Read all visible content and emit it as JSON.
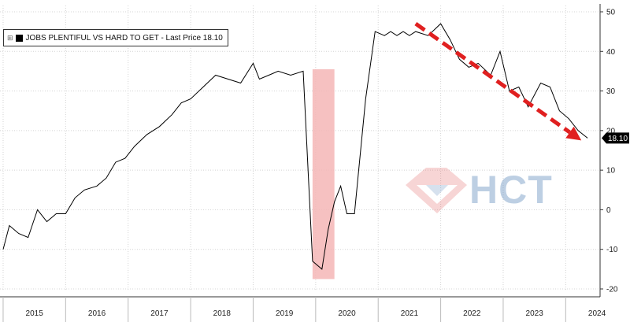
{
  "legend": {
    "label": "JOBS PLENTIFUL VS HARD TO GET - Last Price 18.10",
    "icon": "expand-plus-icon"
  },
  "watermark": {
    "text": "HCT",
    "logo": "diamond-logo-icon"
  },
  "colors": {
    "series": "#000000",
    "recession_band": "#f4b6b6",
    "trend_arrow": "#e02020",
    "watermark": "#6f97c3",
    "last_price_badge": "#000000"
  },
  "chart_data": {
    "type": "line",
    "title": "",
    "series": [
      {
        "name": "JOBS PLENTIFUL VS HARD TO GET",
        "x": [
          2015.0,
          2015.1,
          2015.25,
          2015.4,
          2015.55,
          2015.7,
          2015.85,
          2016.0,
          2016.15,
          2016.3,
          2016.5,
          2016.65,
          2016.8,
          2016.95,
          2017.1,
          2017.3,
          2017.5,
          2017.7,
          2017.85,
          2018.0,
          2018.2,
          2018.4,
          2018.6,
          2018.8,
          2019.0,
          2019.1,
          2019.25,
          2019.4,
          2019.6,
          2019.8,
          2019.95,
          2020.1,
          2020.2,
          2020.3,
          2020.4,
          2020.5,
          2020.62,
          2020.8,
          2020.95,
          2021.1,
          2021.2,
          2021.3,
          2021.4,
          2021.5,
          2021.6,
          2021.8,
          2022.0,
          2022.15,
          2022.3,
          2022.45,
          2022.6,
          2022.8,
          2022.95,
          2023.1,
          2023.25,
          2023.4,
          2023.6,
          2023.75,
          2023.9,
          2024.05,
          2024.2,
          2024.35
        ],
        "values": [
          -10,
          -4,
          -6,
          -7,
          0,
          -3,
          -1,
          -1,
          3,
          5,
          6,
          8,
          12,
          13,
          16,
          19,
          21,
          24,
          27,
          28,
          31,
          34,
          33,
          32,
          37,
          33,
          34,
          35,
          34,
          35,
          -13,
          -15,
          -5,
          2,
          6,
          -1,
          -1,
          28,
          45,
          44,
          45,
          44,
          45,
          44,
          45,
          44,
          47,
          43,
          38,
          36,
          37,
          34,
          40,
          30,
          31,
          26,
          32,
          31,
          25,
          23,
          20,
          18.1
        ]
      }
    ],
    "xlim": [
      2014.95,
      2024.55
    ],
    "ylim": [
      -20,
      50
    ],
    "x_tick_labels": [
      "2015",
      "2016",
      "2017",
      "2018",
      "2019",
      "2020",
      "2021",
      "2022",
      "2023",
      "2024"
    ],
    "y_ticks": [
      -20,
      -10,
      0,
      10,
      20,
      30,
      40,
      50
    ],
    "y_axis_side": "right",
    "last_value_label": "18.10",
    "shaded_region": {
      "x_start": 2019.95,
      "x_end": 2020.3,
      "y_start": -17.5,
      "y_end": 35.5
    },
    "trend_arrow": {
      "x_start": 2021.6,
      "y_start": 47,
      "x_end": 2024.25,
      "y_end": 17.5
    },
    "grid": true,
    "legend_position": "top-left"
  }
}
